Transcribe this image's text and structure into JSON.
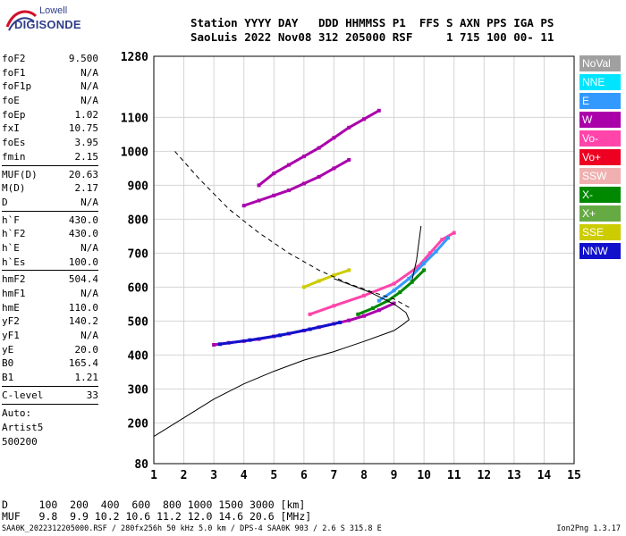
{
  "logo": {
    "word1": "Lowell",
    "word2": "DIGISONDE"
  },
  "header": {
    "line1": "Station YYYY DAY   DDD HHMMSS P1  FFS S AXN PPS IGA PS",
    "line2": "SaoLuis 2022 Nov08 312 205000 RSF     1 715 100 00- 11"
  },
  "params": {
    "group1": [
      {
        "name": "foF2",
        "value": "9.500"
      },
      {
        "name": "foF1",
        "value": "N/A"
      },
      {
        "name": "foF1p",
        "value": "N/A"
      },
      {
        "name": "foE",
        "value": "N/A"
      },
      {
        "name": "foEp",
        "value": "1.02"
      },
      {
        "name": "fxI",
        "value": "10.75"
      },
      {
        "name": "foEs",
        "value": "3.95"
      },
      {
        "name": "fmin",
        "value": "2.15"
      }
    ],
    "group2": [
      {
        "name": "MUF(D)",
        "value": "20.63"
      },
      {
        "name": "M(D)",
        "value": "2.17"
      },
      {
        "name": "D",
        "value": "N/A"
      }
    ],
    "group3": [
      {
        "name": "h`F",
        "value": "430.0"
      },
      {
        "name": "h`F2",
        "value": "430.0"
      },
      {
        "name": "h`E",
        "value": "N/A"
      },
      {
        "name": "h`Es",
        "value": "100.0"
      }
    ],
    "group4": [
      {
        "name": "hmF2",
        "value": "504.4"
      },
      {
        "name": "hmF1",
        "value": "N/A"
      },
      {
        "name": "hmE",
        "value": "110.0"
      },
      {
        "name": "yF2",
        "value": "140.2"
      },
      {
        "name": "yF1",
        "value": "N/A"
      },
      {
        "name": "yE",
        "value": "20.0"
      },
      {
        "name": "B0",
        "value": "165.4"
      },
      {
        "name": "B1",
        "value": "1.21"
      }
    ],
    "group5": [
      {
        "name": "C-level",
        "value": "33"
      }
    ],
    "auto": [
      "Auto:",
      "Artist5",
      "500200"
    ]
  },
  "legend": [
    {
      "label": "NoVal",
      "color": "#a0a0a0"
    },
    {
      "label": "NNE",
      "color": "#00e5ff"
    },
    {
      "label": "E",
      "color": "#3399ff"
    },
    {
      "label": "W",
      "color": "#aa00aa"
    },
    {
      "label": "Vo-",
      "color": "#ff44aa"
    },
    {
      "label": "Vo+",
      "color": "#ee0022"
    },
    {
      "label": "SSW",
      "color": "#f0b0b0"
    },
    {
      "label": "X-",
      "color": "#008800"
    },
    {
      "label": "X+",
      "color": "#66aa44"
    },
    {
      "label": "SSE",
      "color": "#cccc00"
    },
    {
      "label": "NNW",
      "color": "#1111cc"
    }
  ],
  "footer": {
    "line1": "D     100  200  400  600  800 1000 1500 3000 [km]",
    "line2": "MUF   9.8  9.9 10.2 10.6 11.2 12.0 14.6 20.6 [MHz]",
    "line3": "SAA0K_2022312205000.RSF / 280fx256h 50 kHz 5.0 km / DPS-4 SAA0K 903 / 2.6 S 315.8 E",
    "version": "Ion2Png 1.3.17"
  },
  "chart_data": {
    "type": "scatter",
    "xlim": [
      1,
      15
    ],
    "ylim": [
      80,
      1280
    ],
    "xticks": [
      1,
      2,
      3,
      4,
      5,
      6,
      7,
      8,
      9,
      10,
      11,
      12,
      13,
      14,
      15
    ],
    "yticks": [
      80,
      200,
      300,
      400,
      500,
      600,
      700,
      800,
      900,
      1000,
      1100,
      1280
    ],
    "grid": true,
    "legend_position": "right",
    "series": [
      {
        "color": "#aa00aa",
        "points": [
          [
            3.0,
            430
          ],
          [
            3.5,
            436
          ],
          [
            4.0,
            441
          ],
          [
            4.5,
            447
          ],
          [
            5.0,
            455
          ],
          [
            5.5,
            463
          ],
          [
            6.0,
            472
          ],
          [
            6.5,
            482
          ],
          [
            7.0,
            492
          ],
          [
            7.5,
            502
          ],
          [
            8.0,
            515
          ],
          [
            8.5,
            532
          ],
          [
            9.0,
            552
          ]
        ]
      },
      {
        "color": "#1111cc",
        "points": [
          [
            3.2,
            432
          ],
          [
            4.2,
            444
          ],
          [
            5.2,
            458
          ],
          [
            6.2,
            476
          ],
          [
            7.2,
            496
          ]
        ]
      },
      {
        "color": "#008800",
        "points": [
          [
            7.8,
            520
          ],
          [
            8.3,
            538
          ],
          [
            8.8,
            560
          ],
          [
            9.2,
            585
          ],
          [
            9.6,
            615
          ],
          [
            10.0,
            650
          ]
        ]
      },
      {
        "color": "#ff44aa",
        "points": [
          [
            6.2,
            520
          ],
          [
            7.0,
            545
          ],
          [
            8.0,
            575
          ],
          [
            9.0,
            610
          ],
          [
            9.8,
            660
          ],
          [
            10.2,
            700
          ],
          [
            10.6,
            740
          ],
          [
            11.0,
            760
          ]
        ]
      },
      {
        "color": "#3399ff",
        "points": [
          [
            8.5,
            560
          ],
          [
            9.0,
            590
          ],
          [
            9.5,
            625
          ],
          [
            10.0,
            670
          ],
          [
            10.4,
            705
          ],
          [
            10.8,
            745
          ]
        ]
      },
      {
        "color": "#aa00aa",
        "points": [
          [
            4.0,
            840
          ],
          [
            4.5,
            855
          ],
          [
            5.0,
            870
          ],
          [
            5.5,
            885
          ],
          [
            6.0,
            905
          ],
          [
            6.5,
            925
          ],
          [
            7.0,
            950
          ],
          [
            7.5,
            975
          ]
        ]
      },
      {
        "color": "#aa00aa",
        "points": [
          [
            4.5,
            900
          ],
          [
            5.0,
            935
          ],
          [
            5.5,
            960
          ],
          [
            6.0,
            985
          ],
          [
            6.5,
            1010
          ],
          [
            7.0,
            1040
          ],
          [
            7.5,
            1070
          ],
          [
            8.0,
            1095
          ],
          [
            8.5,
            1120
          ]
        ]
      },
      {
        "color": "#cccc00",
        "points": [
          [
            6.0,
            600
          ],
          [
            6.5,
            618
          ],
          [
            7.0,
            635
          ],
          [
            7.5,
            650
          ]
        ]
      }
    ],
    "profile_solid": [
      [
        1.0,
        160
      ],
      [
        2.0,
        215
      ],
      [
        3.0,
        270
      ],
      [
        4.0,
        315
      ],
      [
        5.0,
        352
      ],
      [
        6.0,
        385
      ],
      [
        7.0,
        410
      ],
      [
        8.0,
        440
      ],
      [
        9.0,
        472
      ],
      [
        9.3,
        490
      ],
      [
        9.5,
        504
      ],
      [
        9.4,
        525
      ],
      [
        9.0,
        550
      ],
      [
        8.2,
        585
      ],
      [
        7.0,
        625
      ]
    ],
    "profile_dashed": [
      [
        1.7,
        1000
      ],
      [
        2.5,
        920
      ],
      [
        3.5,
        830
      ],
      [
        4.5,
        760
      ],
      [
        5.5,
        700
      ],
      [
        6.5,
        650
      ],
      [
        7.5,
        610
      ],
      [
        8.3,
        585
      ],
      [
        9.0,
        565
      ],
      [
        9.5,
        540
      ]
    ],
    "trace_solid": [
      [
        9.6,
        620
      ],
      [
        9.75,
        680
      ],
      [
        9.9,
        780
      ]
    ]
  }
}
